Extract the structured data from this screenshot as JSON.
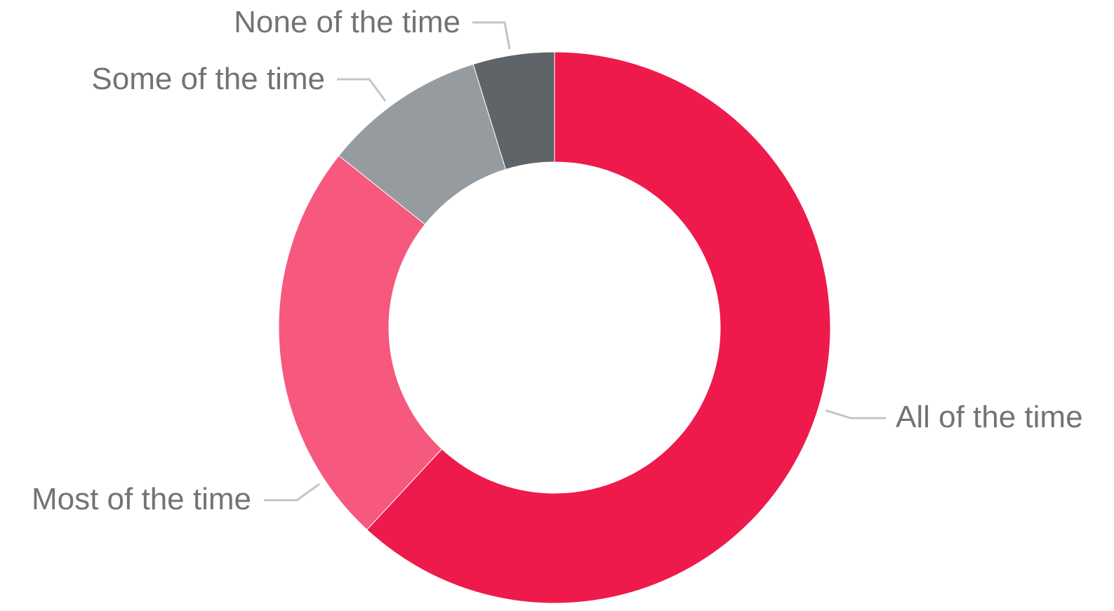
{
  "chart_data": {
    "type": "pie",
    "variant": "donut",
    "title": "",
    "categories": [
      "All of the time",
      "Most of the time",
      "Some of the time",
      "None of the time"
    ],
    "values": [
      65,
      25,
      10,
      5
    ],
    "value_unit": "relative share (estimated, no data labels shown)",
    "colors": [
      "#ee1a4b",
      "#f7587d",
      "#969ba0",
      "#5f6468"
    ],
    "start_angle": "12 o'clock",
    "direction": "clockwise",
    "legend": "none",
    "labels_placement": "outside-with-leader-lines"
  }
}
